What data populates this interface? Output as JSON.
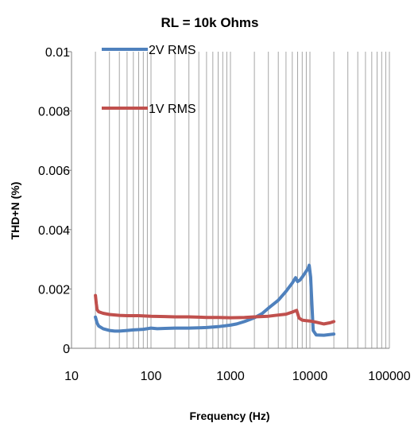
{
  "chart_data": {
    "type": "line",
    "title": "RL = 10k Ohms",
    "xlabel": "Frequency (Hz)",
    "ylabel": "THD+N (%)",
    "x_scale": "log",
    "xlim": [
      10,
      100000
    ],
    "ylim": [
      0,
      0.01
    ],
    "x_ticks": [
      "10",
      "100",
      "1000",
      "10000",
      "100000"
    ],
    "y_ticks": [
      "0",
      "0.002",
      "0.004",
      "0.006",
      "0.008",
      "0.01"
    ],
    "grid": true,
    "legend_placement": "top-left",
    "series": [
      {
        "name": "2V RMS",
        "color": "#4f81bd",
        "x": [
          20,
          21,
          22,
          25,
          30,
          35,
          40,
          50,
          60,
          70,
          80,
          100,
          120,
          150,
          200,
          300,
          400,
          500,
          700,
          1000,
          1200,
          1500,
          2000,
          2500,
          3000,
          4000,
          5000,
          6000,
          6600,
          7000,
          7500,
          8000,
          9000,
          9500,
          9800,
          10200,
          10600,
          11000,
          12000,
          15000,
          20000
        ],
        "y": [
          0.00105,
          0.00085,
          0.00075,
          0.00066,
          0.0006,
          0.00058,
          0.00058,
          0.0006,
          0.00062,
          0.00063,
          0.00064,
          0.00068,
          0.00066,
          0.00067,
          0.00068,
          0.00068,
          0.00069,
          0.0007,
          0.00073,
          0.00078,
          0.00082,
          0.0009,
          0.00103,
          0.00117,
          0.00135,
          0.00162,
          0.00192,
          0.0022,
          0.00238,
          0.00225,
          0.0023,
          0.0024,
          0.0026,
          0.0027,
          0.0028,
          0.0024,
          0.0015,
          0.0006,
          0.00045,
          0.00044,
          0.00048
        ]
      },
      {
        "name": "1V RMS",
        "color": "#c0504d",
        "x": [
          20,
          20.5,
          21,
          22,
          25,
          30,
          40,
          50,
          70,
          100,
          150,
          200,
          300,
          500,
          700,
          1000,
          1500,
          2000,
          3000,
          4000,
          5000,
          6000,
          6800,
          7300,
          8000,
          9000,
          10000,
          12000,
          15000,
          18000,
          20000
        ],
        "y": [
          0.00178,
          0.0015,
          0.0013,
          0.00123,
          0.00118,
          0.00114,
          0.00111,
          0.0011,
          0.0011,
          0.00108,
          0.00107,
          0.00106,
          0.00106,
          0.00104,
          0.00104,
          0.00103,
          0.00104,
          0.00106,
          0.00108,
          0.00112,
          0.00115,
          0.00122,
          0.00128,
          0.00102,
          0.00095,
          0.00093,
          0.00092,
          0.00088,
          0.00082,
          0.00086,
          0.0009
        ]
      }
    ]
  }
}
